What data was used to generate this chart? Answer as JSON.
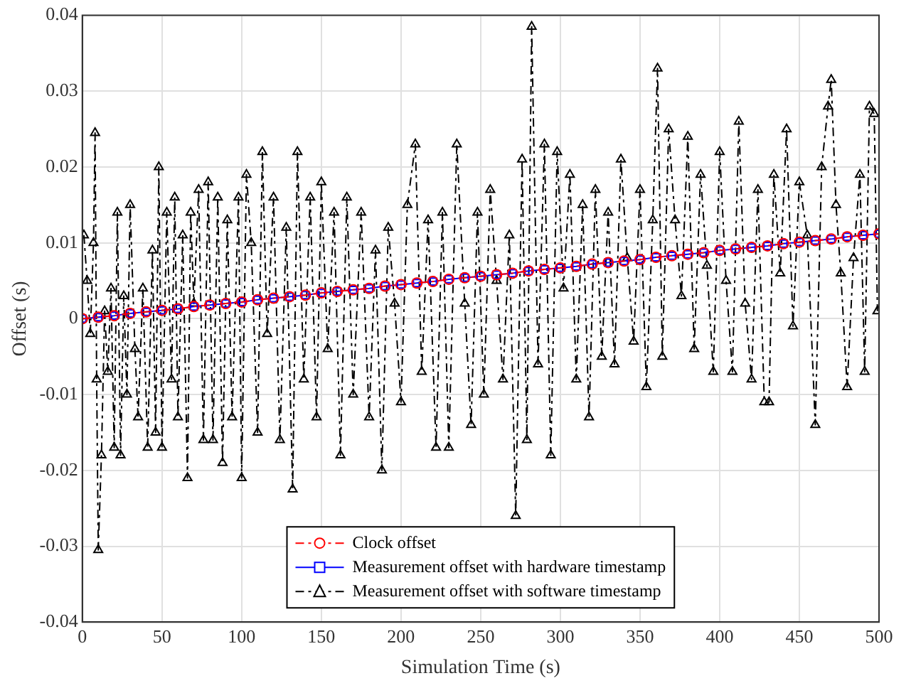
{
  "chart_data": {
    "type": "line",
    "xlabel": "Simulation Time (s)",
    "ylabel": "Offset (s)",
    "xlim": [
      0,
      500
    ],
    "xticks": [
      0,
      50,
      100,
      150,
      200,
      250,
      300,
      350,
      400,
      450,
      500
    ],
    "ylim": [
      -0.04,
      0.04
    ],
    "yticks": [
      -0.04,
      -0.03,
      -0.02,
      -0.01,
      0,
      0.01,
      0.02,
      0.03,
      0.04
    ],
    "grid": true,
    "legend": "bottom",
    "series": [
      {
        "name": "Clock offset",
        "color": "#ff0000",
        "marker": "circle",
        "line_style": "dashed",
        "x": [
          0,
          10,
          20,
          30,
          40,
          50,
          60,
          70,
          80,
          90,
          100,
          110,
          120,
          130,
          140,
          150,
          160,
          170,
          180,
          190,
          200,
          210,
          220,
          230,
          240,
          250,
          260,
          270,
          280,
          290,
          300,
          310,
          320,
          330,
          340,
          350,
          360,
          370,
          380,
          390,
          400,
          410,
          420,
          430,
          440,
          450,
          460,
          470,
          480,
          490,
          500
        ],
        "values": [
          0,
          0.0002,
          0.0004,
          0.0007,
          0.0009,
          0.0011,
          0.0013,
          0.0016,
          0.0018,
          0.002,
          0.0022,
          0.0025,
          0.0027,
          0.0029,
          0.0031,
          0.0034,
          0.0036,
          0.0038,
          0.004,
          0.0043,
          0.0045,
          0.0047,
          0.0049,
          0.0052,
          0.0054,
          0.0056,
          0.0058,
          0.006,
          0.0063,
          0.0065,
          0.0067,
          0.0069,
          0.0072,
          0.0074,
          0.0076,
          0.0078,
          0.0081,
          0.0083,
          0.0085,
          0.0087,
          0.009,
          0.0092,
          0.0094,
          0.0096,
          0.0099,
          0.0101,
          0.0103,
          0.0105,
          0.0108,
          0.011,
          0.0112
        ]
      },
      {
        "name": "Measurement offset with hardware timestamp",
        "color": "#0000ff",
        "marker": "square",
        "line_style": "solid",
        "x": [
          0,
          10,
          20,
          30,
          40,
          50,
          60,
          70,
          80,
          90,
          100,
          110,
          120,
          130,
          140,
          150,
          160,
          170,
          180,
          190,
          200,
          210,
          220,
          230,
          240,
          250,
          260,
          270,
          280,
          290,
          300,
          310,
          320,
          330,
          340,
          350,
          360,
          370,
          380,
          390,
          400,
          410,
          420,
          430,
          440,
          450,
          460,
          470,
          480,
          490,
          500
        ],
        "values": [
          0,
          0.0002,
          0.0004,
          0.0007,
          0.0009,
          0.0011,
          0.0013,
          0.0016,
          0.0018,
          0.002,
          0.0022,
          0.0025,
          0.0027,
          0.0029,
          0.0031,
          0.0034,
          0.0036,
          0.0038,
          0.004,
          0.0043,
          0.0045,
          0.0047,
          0.0049,
          0.0052,
          0.0054,
          0.0056,
          0.0058,
          0.006,
          0.0063,
          0.0065,
          0.0067,
          0.0069,
          0.0072,
          0.0074,
          0.0076,
          0.0078,
          0.0081,
          0.0083,
          0.0085,
          0.0087,
          0.009,
          0.0092,
          0.0094,
          0.0096,
          0.0099,
          0.0101,
          0.0103,
          0.0105,
          0.0108,
          0.011,
          0.0112
        ]
      },
      {
        "name": "Measurement offset with software timestamp",
        "color": "#000000",
        "marker": "triangle",
        "line_style": "dashed",
        "x": [
          1,
          3,
          5,
          7,
          8,
          9,
          10,
          12,
          14,
          16,
          18,
          20,
          22,
          24,
          26,
          28,
          30,
          33,
          35,
          38,
          41,
          44,
          46,
          48,
          50,
          53,
          56,
          58,
          60,
          63,
          66,
          68,
          70,
          73,
          76,
          79,
          82,
          85,
          88,
          91,
          94,
          98,
          100,
          103,
          106,
          110,
          113,
          116,
          120,
          124,
          128,
          132,
          135,
          139,
          143,
          147,
          150,
          154,
          158,
          162,
          166,
          170,
          175,
          180,
          184,
          188,
          192,
          196,
          200,
          204,
          209,
          213,
          217,
          222,
          226,
          230,
          235,
          240,
          244,
          248,
          252,
          256,
          260,
          264,
          268,
          272,
          276,
          279,
          282,
          286,
          290,
          294,
          298,
          302,
          306,
          310,
          314,
          318,
          322,
          326,
          330,
          334,
          338,
          342,
          346,
          350,
          354,
          358,
          361,
          364,
          368,
          372,
          376,
          380,
          384,
          388,
          392,
          396,
          400,
          404,
          408,
          412,
          416,
          420,
          424,
          428,
          431,
          434,
          438,
          442,
          446,
          450,
          455,
          460,
          464,
          468,
          470,
          473,
          476,
          480,
          484,
          488,
          491,
          494,
          497,
          499
        ],
        "values": [
          0.011,
          0.005,
          -0.002,
          0.01,
          0.0245,
          -0.008,
          -0.0305,
          -0.018,
          0.001,
          -0.007,
          0.004,
          -0.017,
          0.014,
          -0.018,
          0.003,
          -0.01,
          0.015,
          -0.004,
          -0.013,
          0.004,
          -0.017,
          0.009,
          -0.015,
          0.02,
          -0.017,
          0.014,
          -0.008,
          0.016,
          -0.013,
          0.011,
          -0.021,
          0.014,
          0.002,
          0.017,
          -0.016,
          0.018,
          -0.016,
          0.016,
          -0.019,
          0.013,
          -0.013,
          0.016,
          -0.021,
          0.019,
          0.01,
          -0.015,
          0.022,
          -0.002,
          0.016,
          -0.016,
          0.012,
          -0.0225,
          0.022,
          -0.008,
          0.016,
          -0.013,
          0.018,
          -0.004,
          0.014,
          -0.018,
          0.016,
          -0.01,
          0.014,
          -0.013,
          0.009,
          -0.02,
          0.012,
          0.002,
          -0.011,
          0.015,
          0.023,
          -0.007,
          0.013,
          -0.017,
          0.014,
          -0.017,
          0.023,
          0.002,
          -0.014,
          0.014,
          -0.01,
          0.017,
          0.005,
          -0.008,
          0.011,
          -0.026,
          0.021,
          -0.016,
          0.0385,
          -0.006,
          0.023,
          -0.018,
          0.022,
          0.004,
          0.019,
          -0.008,
          0.015,
          -0.013,
          0.017,
          -0.005,
          0.014,
          -0.006,
          0.021,
          0.008,
          -0.003,
          0.017,
          -0.009,
          0.013,
          0.033,
          -0.005,
          0.025,
          0.013,
          0.003,
          0.024,
          -0.004,
          0.019,
          0.007,
          -0.007,
          0.022,
          0.005,
          -0.007,
          0.026,
          0.002,
          -0.008,
          0.017,
          -0.011,
          -0.011,
          0.019,
          0.006,
          0.025,
          -0.001,
          0.018,
          0.011,
          -0.014,
          0.02,
          0.028,
          0.0315,
          0.015,
          0.006,
          -0.009,
          0.008,
          0.019,
          -0.007,
          0.028,
          0.027,
          0.001
        ]
      }
    ]
  }
}
